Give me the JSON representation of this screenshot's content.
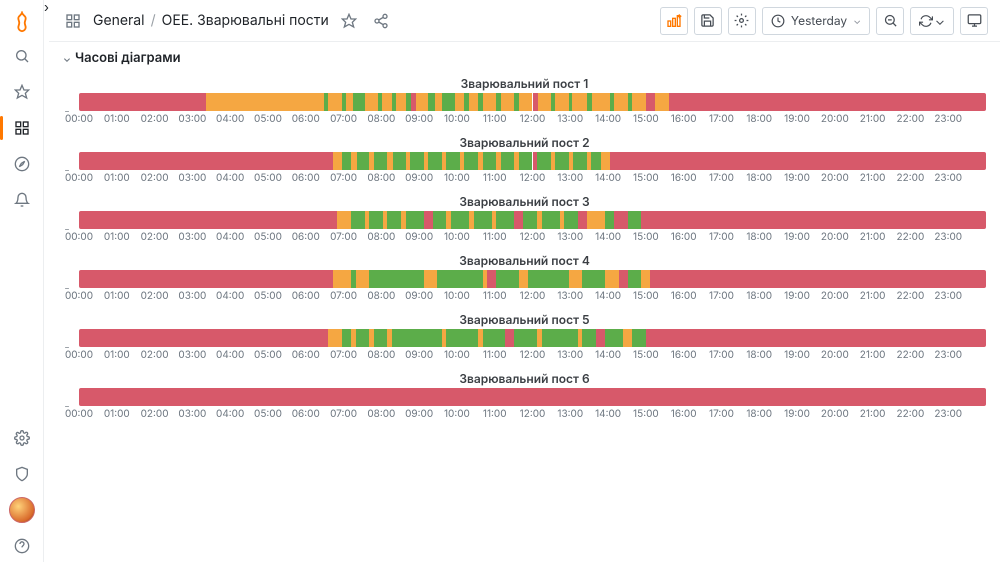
{
  "breadcrumb": {
    "root": "General",
    "title": "OEE. Зварювальні пости"
  },
  "timeRange": {
    "label": "Yesterday"
  },
  "rowTitle": "Часові діаграми",
  "colors": {
    "idle": "#d7596a",
    "warn": "#f5a742",
    "run": "#5cad4a",
    "border": "#d0d7de"
  },
  "axis": {
    "ticks": [
      "00:00",
      "01:00",
      "02:00",
      "03:00",
      "04:00",
      "05:00",
      "06:00",
      "07:00",
      "08:00",
      "09:00",
      "10:00",
      "11:00",
      "12:00",
      "13:00",
      "14:00",
      "15:00",
      "16:00",
      "17:00",
      "18:00",
      "19:00",
      "20:00",
      "21:00",
      "22:00",
      "23:00"
    ]
  },
  "panels": [
    {
      "title": "Зварювальний пост 1",
      "segments": [
        {
          "start": 0,
          "end": 14.0,
          "state": "idle"
        },
        {
          "start": 14.0,
          "end": 27.0,
          "state": "warn"
        },
        {
          "start": 27.0,
          "end": 27.5,
          "state": "run"
        },
        {
          "start": 27.5,
          "end": 29.0,
          "state": "warn"
        },
        {
          "start": 29.0,
          "end": 29.4,
          "state": "run"
        },
        {
          "start": 29.4,
          "end": 30.2,
          "state": "warn"
        },
        {
          "start": 30.2,
          "end": 31.5,
          "state": "run"
        },
        {
          "start": 31.5,
          "end": 33.0,
          "state": "warn"
        },
        {
          "start": 33.0,
          "end": 33.4,
          "state": "run"
        },
        {
          "start": 33.4,
          "end": 34.5,
          "state": "warn"
        },
        {
          "start": 34.5,
          "end": 35.0,
          "state": "run"
        },
        {
          "start": 35.0,
          "end": 36.0,
          "state": "warn"
        },
        {
          "start": 36.0,
          "end": 36.6,
          "state": "run"
        },
        {
          "start": 36.6,
          "end": 37.2,
          "state": "idle"
        },
        {
          "start": 37.2,
          "end": 38.5,
          "state": "warn"
        },
        {
          "start": 38.5,
          "end": 39.2,
          "state": "run"
        },
        {
          "start": 39.2,
          "end": 40.0,
          "state": "warn"
        },
        {
          "start": 40.0,
          "end": 41.5,
          "state": "run"
        },
        {
          "start": 41.5,
          "end": 42.5,
          "state": "warn"
        },
        {
          "start": 42.5,
          "end": 43.0,
          "state": "run"
        },
        {
          "start": 43.0,
          "end": 44.0,
          "state": "warn"
        },
        {
          "start": 44.0,
          "end": 44.5,
          "state": "run"
        },
        {
          "start": 44.5,
          "end": 46.0,
          "state": "warn"
        },
        {
          "start": 46.0,
          "end": 46.5,
          "state": "run"
        },
        {
          "start": 46.5,
          "end": 48.0,
          "state": "warn"
        },
        {
          "start": 48.0,
          "end": 48.5,
          "state": "run"
        },
        {
          "start": 48.5,
          "end": 50.0,
          "state": "warn"
        },
        {
          "start": 50.0,
          "end": 50.6,
          "state": "idle"
        },
        {
          "start": 50.6,
          "end": 52.0,
          "state": "warn"
        },
        {
          "start": 52.0,
          "end": 52.5,
          "state": "run"
        },
        {
          "start": 52.5,
          "end": 54.0,
          "state": "warn"
        },
        {
          "start": 54.0,
          "end": 54.4,
          "state": "run"
        },
        {
          "start": 54.4,
          "end": 56.0,
          "state": "warn"
        },
        {
          "start": 56.0,
          "end": 56.6,
          "state": "run"
        },
        {
          "start": 56.6,
          "end": 58.5,
          "state": "warn"
        },
        {
          "start": 58.5,
          "end": 59.0,
          "state": "run"
        },
        {
          "start": 59.0,
          "end": 60.5,
          "state": "warn"
        },
        {
          "start": 60.5,
          "end": 61.0,
          "state": "run"
        },
        {
          "start": 61.0,
          "end": 62.5,
          "state": "warn"
        },
        {
          "start": 62.5,
          "end": 63.5,
          "state": "idle"
        },
        {
          "start": 63.5,
          "end": 65.0,
          "state": "warn"
        },
        {
          "start": 65.0,
          "end": 100,
          "state": "idle"
        }
      ]
    },
    {
      "title": "Зварювальний пост 2",
      "segments": [
        {
          "start": 0,
          "end": 28.0,
          "state": "idle"
        },
        {
          "start": 28.0,
          "end": 29.0,
          "state": "warn"
        },
        {
          "start": 29.0,
          "end": 30.0,
          "state": "run"
        },
        {
          "start": 30.0,
          "end": 30.6,
          "state": "warn"
        },
        {
          "start": 30.6,
          "end": 32.0,
          "state": "run"
        },
        {
          "start": 32.0,
          "end": 32.5,
          "state": "warn"
        },
        {
          "start": 32.5,
          "end": 34.0,
          "state": "run"
        },
        {
          "start": 34.0,
          "end": 34.6,
          "state": "warn"
        },
        {
          "start": 34.6,
          "end": 36.0,
          "state": "run"
        },
        {
          "start": 36.0,
          "end": 36.5,
          "state": "warn"
        },
        {
          "start": 36.5,
          "end": 38.0,
          "state": "run"
        },
        {
          "start": 38.0,
          "end": 38.5,
          "state": "warn"
        },
        {
          "start": 38.5,
          "end": 40.0,
          "state": "run"
        },
        {
          "start": 40.0,
          "end": 40.5,
          "state": "warn"
        },
        {
          "start": 40.5,
          "end": 42.0,
          "state": "run"
        },
        {
          "start": 42.0,
          "end": 42.5,
          "state": "warn"
        },
        {
          "start": 42.5,
          "end": 44.0,
          "state": "run"
        },
        {
          "start": 44.0,
          "end": 44.5,
          "state": "warn"
        },
        {
          "start": 44.5,
          "end": 46.0,
          "state": "run"
        },
        {
          "start": 46.0,
          "end": 46.5,
          "state": "warn"
        },
        {
          "start": 46.5,
          "end": 48.0,
          "state": "run"
        },
        {
          "start": 48.0,
          "end": 48.5,
          "state": "warn"
        },
        {
          "start": 48.5,
          "end": 50.0,
          "state": "run"
        },
        {
          "start": 50.0,
          "end": 50.5,
          "state": "idle"
        },
        {
          "start": 50.5,
          "end": 52.0,
          "state": "run"
        },
        {
          "start": 52.0,
          "end": 52.5,
          "state": "warn"
        },
        {
          "start": 52.5,
          "end": 54.0,
          "state": "run"
        },
        {
          "start": 54.0,
          "end": 54.5,
          "state": "warn"
        },
        {
          "start": 54.5,
          "end": 56.0,
          "state": "run"
        },
        {
          "start": 56.0,
          "end": 56.5,
          "state": "warn"
        },
        {
          "start": 56.5,
          "end": 57.5,
          "state": "run"
        },
        {
          "start": 57.5,
          "end": 58.5,
          "state": "warn"
        },
        {
          "start": 58.5,
          "end": 100,
          "state": "idle"
        }
      ]
    },
    {
      "title": "Зварювальний пост 3",
      "segments": [
        {
          "start": 0,
          "end": 28.5,
          "state": "idle"
        },
        {
          "start": 28.5,
          "end": 30.0,
          "state": "warn"
        },
        {
          "start": 30.0,
          "end": 31.5,
          "state": "run"
        },
        {
          "start": 31.5,
          "end": 32.0,
          "state": "warn"
        },
        {
          "start": 32.0,
          "end": 33.5,
          "state": "run"
        },
        {
          "start": 33.5,
          "end": 34.0,
          "state": "warn"
        },
        {
          "start": 34.0,
          "end": 35.5,
          "state": "run"
        },
        {
          "start": 35.5,
          "end": 36.0,
          "state": "warn"
        },
        {
          "start": 36.0,
          "end": 38.0,
          "state": "run"
        },
        {
          "start": 38.0,
          "end": 39.0,
          "state": "idle"
        },
        {
          "start": 39.0,
          "end": 40.5,
          "state": "run"
        },
        {
          "start": 40.5,
          "end": 41.0,
          "state": "warn"
        },
        {
          "start": 41.0,
          "end": 43.0,
          "state": "run"
        },
        {
          "start": 43.0,
          "end": 43.5,
          "state": "warn"
        },
        {
          "start": 43.5,
          "end": 45.5,
          "state": "run"
        },
        {
          "start": 45.5,
          "end": 46.0,
          "state": "warn"
        },
        {
          "start": 46.0,
          "end": 48.0,
          "state": "run"
        },
        {
          "start": 48.0,
          "end": 49.0,
          "state": "idle"
        },
        {
          "start": 49.0,
          "end": 50.5,
          "state": "run"
        },
        {
          "start": 50.5,
          "end": 51.0,
          "state": "warn"
        },
        {
          "start": 51.0,
          "end": 53.0,
          "state": "run"
        },
        {
          "start": 53.0,
          "end": 53.5,
          "state": "warn"
        },
        {
          "start": 53.5,
          "end": 55.0,
          "state": "run"
        },
        {
          "start": 55.0,
          "end": 56.0,
          "state": "idle"
        },
        {
          "start": 56.0,
          "end": 58.0,
          "state": "warn"
        },
        {
          "start": 58.0,
          "end": 59.0,
          "state": "run"
        },
        {
          "start": 59.0,
          "end": 60.5,
          "state": "idle"
        },
        {
          "start": 60.5,
          "end": 62.0,
          "state": "run"
        },
        {
          "start": 62.0,
          "end": 100,
          "state": "idle"
        }
      ]
    },
    {
      "title": "Зварювальний пост 4",
      "segments": [
        {
          "start": 0,
          "end": 28.0,
          "state": "idle"
        },
        {
          "start": 28.0,
          "end": 30.0,
          "state": "warn"
        },
        {
          "start": 30.0,
          "end": 30.5,
          "state": "run"
        },
        {
          "start": 30.5,
          "end": 32.0,
          "state": "warn"
        },
        {
          "start": 32.0,
          "end": 38.0,
          "state": "run"
        },
        {
          "start": 38.0,
          "end": 39.5,
          "state": "warn"
        },
        {
          "start": 39.5,
          "end": 44.5,
          "state": "run"
        },
        {
          "start": 44.5,
          "end": 45.0,
          "state": "warn"
        },
        {
          "start": 45.0,
          "end": 46.0,
          "state": "idle"
        },
        {
          "start": 46.0,
          "end": 48.5,
          "state": "run"
        },
        {
          "start": 48.5,
          "end": 49.5,
          "state": "warn"
        },
        {
          "start": 49.5,
          "end": 54.0,
          "state": "run"
        },
        {
          "start": 54.0,
          "end": 55.5,
          "state": "warn"
        },
        {
          "start": 55.5,
          "end": 58.0,
          "state": "run"
        },
        {
          "start": 58.0,
          "end": 59.5,
          "state": "warn"
        },
        {
          "start": 59.5,
          "end": 60.5,
          "state": "idle"
        },
        {
          "start": 60.5,
          "end": 62.0,
          "state": "run"
        },
        {
          "start": 62.0,
          "end": 63.0,
          "state": "warn"
        },
        {
          "start": 63.0,
          "end": 100,
          "state": "idle"
        }
      ]
    },
    {
      "title": "Зварювальний пост 5",
      "segments": [
        {
          "start": 0,
          "end": 27.5,
          "state": "idle"
        },
        {
          "start": 27.5,
          "end": 29.0,
          "state": "warn"
        },
        {
          "start": 29.0,
          "end": 30.0,
          "state": "run"
        },
        {
          "start": 30.0,
          "end": 30.5,
          "state": "warn"
        },
        {
          "start": 30.5,
          "end": 32.0,
          "state": "run"
        },
        {
          "start": 32.0,
          "end": 32.5,
          "state": "warn"
        },
        {
          "start": 32.5,
          "end": 34.0,
          "state": "run"
        },
        {
          "start": 34.0,
          "end": 34.5,
          "state": "warn"
        },
        {
          "start": 34.5,
          "end": 40.0,
          "state": "run"
        },
        {
          "start": 40.0,
          "end": 40.5,
          "state": "warn"
        },
        {
          "start": 40.5,
          "end": 44.0,
          "state": "run"
        },
        {
          "start": 44.0,
          "end": 44.5,
          "state": "warn"
        },
        {
          "start": 44.5,
          "end": 47.0,
          "state": "run"
        },
        {
          "start": 47.0,
          "end": 48.0,
          "state": "idle"
        },
        {
          "start": 48.0,
          "end": 50.5,
          "state": "run"
        },
        {
          "start": 50.5,
          "end": 51.0,
          "state": "warn"
        },
        {
          "start": 51.0,
          "end": 55.0,
          "state": "run"
        },
        {
          "start": 55.0,
          "end": 55.5,
          "state": "warn"
        },
        {
          "start": 55.5,
          "end": 57.0,
          "state": "run"
        },
        {
          "start": 57.0,
          "end": 58.0,
          "state": "idle"
        },
        {
          "start": 58.0,
          "end": 60.0,
          "state": "run"
        },
        {
          "start": 60.0,
          "end": 61.0,
          "state": "warn"
        },
        {
          "start": 61.0,
          "end": 62.5,
          "state": "run"
        },
        {
          "start": 62.5,
          "end": 100,
          "state": "idle"
        }
      ]
    },
    {
      "title": "Зварювальний пост 6",
      "segments": [
        {
          "start": 0,
          "end": 100,
          "state": "idle"
        }
      ]
    }
  ]
}
